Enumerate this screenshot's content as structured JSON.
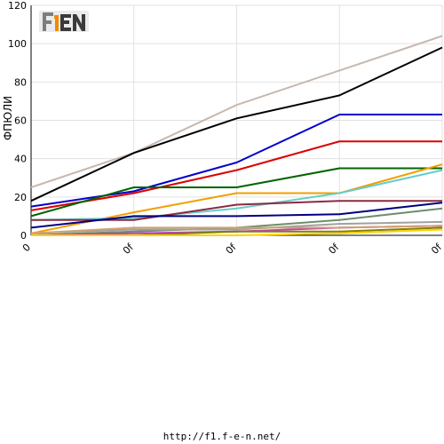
{
  "logo": {
    "text": "F1EN",
    "colors": {
      "gray": "#8a8a8a",
      "orange": "#f08a00",
      "dark": "#3a3a3a"
    }
  },
  "footer": {
    "url": "http://f1.f-e-n.net/"
  },
  "chart_data": {
    "type": "line",
    "ylabel": "ФПЮЛИ",
    "ylim": [
      0,
      120
    ],
    "yticks": [
      0,
      20,
      40,
      60,
      80,
      100,
      120
    ],
    "categories": [
      "0",
      "0f",
      "0f",
      "0f",
      "0f"
    ],
    "grid": true,
    "series": [
      {
        "color": "#c8b8ae",
        "values": [
          25,
          43,
          68,
          86,
          104
        ]
      },
      {
        "color": "#000000",
        "values": [
          18,
          43,
          61,
          73,
          98
        ]
      },
      {
        "color": "#0000cc",
        "values": [
          15,
          23,
          38,
          63,
          63
        ]
      },
      {
        "color": "#dd0000",
        "values": [
          13,
          22,
          34,
          49,
          49
        ]
      },
      {
        "color": "#006400",
        "values": [
          10,
          25,
          25,
          35,
          35
        ]
      },
      {
        "color": "#f0a000",
        "values": [
          1,
          12,
          22,
          22,
          37
        ]
      },
      {
        "color": "#66cccc",
        "values": [
          8,
          9,
          14,
          22,
          34
        ]
      },
      {
        "color": "#8b2a40",
        "values": [
          8,
          8,
          16,
          18,
          18
        ]
      },
      {
        "color": "#000080",
        "values": [
          4,
          10,
          10,
          11,
          17
        ]
      },
      {
        "color": "#6b8e6b",
        "values": [
          0,
          2,
          4,
          8,
          14
        ]
      },
      {
        "color": "#a0a0a0",
        "values": [
          1,
          3,
          3,
          6,
          7
        ]
      },
      {
        "color": "#c040c0",
        "values": [
          0,
          1,
          2,
          4,
          5
        ]
      },
      {
        "color": "#d2a070",
        "values": [
          1,
          4,
          4,
          4,
          5
        ]
      },
      {
        "color": "#808000",
        "values": [
          0,
          0,
          2,
          2,
          4
        ]
      },
      {
        "color": "#ffd000",
        "values": [
          0,
          0,
          0,
          1,
          3
        ]
      }
    ]
  }
}
